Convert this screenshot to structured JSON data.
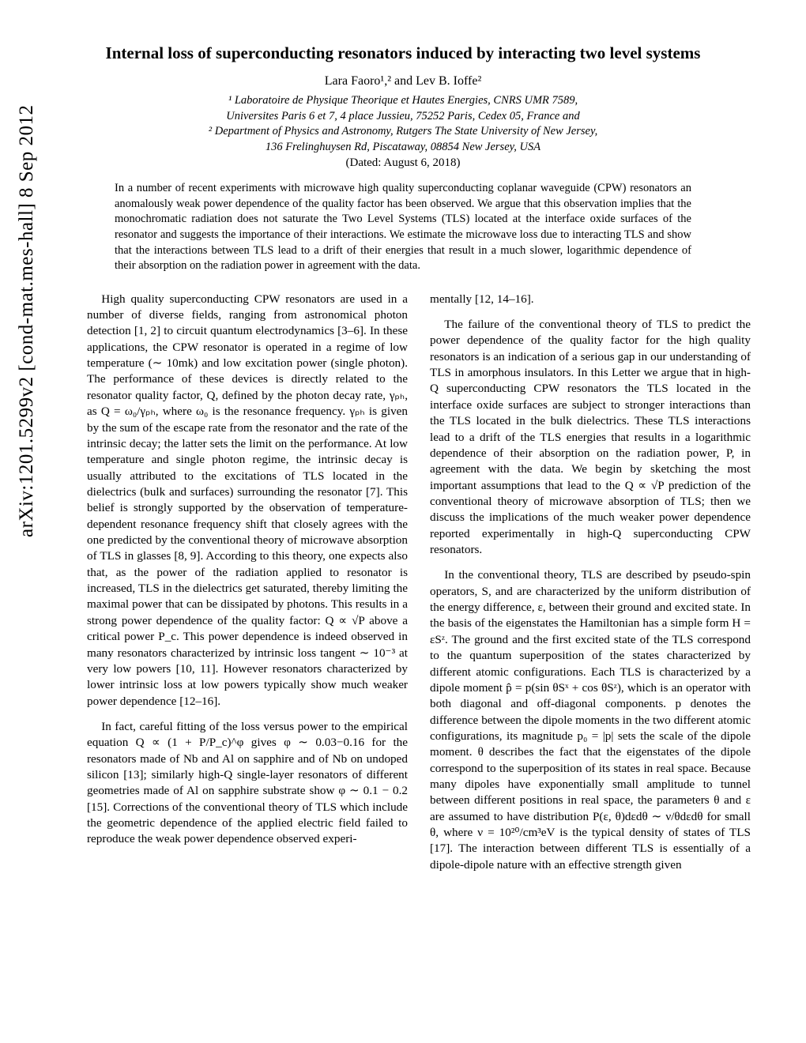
{
  "arxiv_id": "arXiv:1201.5299v2  [cond-mat.mes-hall]  8 Sep 2012",
  "title": "Internal loss of superconducting resonators induced by interacting two level systems",
  "authors": "Lara Faoro¹,² and Lev B. Ioffe²",
  "affiliations": [
    "¹ Laboratoire de Physique Theorique et Hautes Energies, CNRS UMR 7589,",
    "Universites Paris 6 et 7, 4 place Jussieu, 75252 Paris, Cedex 05, France and",
    "² Department of Physics and Astronomy, Rutgers The State University of New Jersey,",
    "136 Frelinghuysen Rd, Piscataway, 08854 New Jersey, USA"
  ],
  "dated": "(Dated: August 6, 2018)",
  "abstract": "In a number of recent experiments with microwave high quality superconducting coplanar waveguide (CPW) resonators an anomalously weak power dependence of the quality factor has been observed. We argue that this observation implies that the monochromatic radiation does not saturate the Two Level Systems (TLS) located at the interface oxide surfaces of the resonator and suggests the importance of their interactions. We estimate the microwave loss due to interacting TLS and show that the interactions between TLS lead to a drift of their energies that result in a much slower, logarithmic dependence of their absorption on the radiation power in agreement with the data.",
  "left_p1": "High quality superconducting CPW resonators are used in a number of diverse fields, ranging from astronomical photon detection [1, 2] to circuit quantum electrodynamics [3–6]. In these applications, the CPW resonator is operated in a regime of low temperature (∼ 10mk) and low excitation power (single photon). The performance of these devices is directly related to the resonator quality factor, Q, defined by the photon decay rate, γₚₕ, as Q = ω₀/γₚₕ, where ω₀ is the resonance frequency. γₚₕ is given by the sum of the escape rate from the resonator and the rate of the intrinsic decay; the latter sets the limit on the performance. At low temperature and single photon regime, the intrinsic decay is usually attributed to the excitations of TLS located in the dielectrics (bulk and surfaces) surrounding the resonator [7]. This belief is strongly supported by the observation of temperature-dependent resonance frequency shift that closely agrees with the one predicted by the conventional theory of microwave absorption of TLS in glasses [8, 9]. According to this theory, one expects also that, as the power of the radiation applied to resonator is increased, TLS in the dielectrics get saturated, thereby limiting the maximal power that can be dissipated by photons. This results in a strong power dependence of the quality factor: Q ∝ √P above a critical power P_c. This power dependence is indeed observed in many resonators characterized by intrinsic loss tangent ∼ 10⁻³ at very low powers [10, 11]. However resonators characterized by lower intrinsic loss at low powers typically show much weaker power dependence [12–16].",
  "left_p2": "In fact, careful fitting of the loss versus power to the empirical equation Q ∝ (1 + P/P_c)^φ gives φ ∼ 0.03−0.16 for the resonators made of Nb and Al on sapphire and of Nb on undoped silicon [13]; similarly high-Q single-layer resonators of different geometries made of Al on sapphire substrate show φ ∼ 0.1 − 0.2 [15]. Corrections of the conventional theory of TLS which include the geometric dependence of the applied electric field failed to reproduce the weak power dependence observed experi-",
  "right_p0": "mentally [12, 14–16].",
  "right_p1": "The failure of the conventional theory of TLS to predict the power dependence of the quality factor for the high quality resonators is an indication of a serious gap in our understanding of TLS in amorphous insulators. In this Letter we argue that in high-Q superconducting CPW resonators the TLS located in the interface oxide surfaces are subject to stronger interactions than the TLS located in the bulk dielectrics. These TLS interactions lead to a drift of the TLS energies that results in a logarithmic dependence of their absorption on the radiation power, P, in agreement with the data. We begin by sketching the most important assumptions that lead to the Q ∝ √P prediction of the conventional theory of microwave absorption of TLS; then we discuss the implications of the much weaker power dependence reported experimentally in high-Q superconducting CPW resonators.",
  "right_p2": "In the conventional theory, TLS are described by pseudo-spin operators, S, and are characterized by the uniform distribution of the energy difference, ε, between their ground and excited state. In the basis of the eigenstates the Hamiltonian has a simple form H = εSᶻ. The ground and the first excited state of the TLS correspond to the quantum superposition of the states characterized by different atomic configurations. Each TLS is characterized by a dipole moment p̂ = p(sin θSˣ + cos θSᶻ), which is an operator with both diagonal and off-diagonal components. p denotes the difference between the dipole moments in the two different atomic configurations, its magnitude p₀ = |p| sets the scale of the dipole moment. θ describes the fact that the eigenstates of the dipole correspond to the superposition of its states in real space. Because many dipoles have exponentially small amplitude to tunnel between different positions in real space, the parameters θ and ε are assumed to have distribution P(ε, θ)dεdθ ∼ ν/θdεdθ for small θ, where ν = 10²⁰/cm³eV is the typical density of states of TLS [17]. The interaction between different TLS is essentially of a dipole-dipole nature with an effective strength given"
}
